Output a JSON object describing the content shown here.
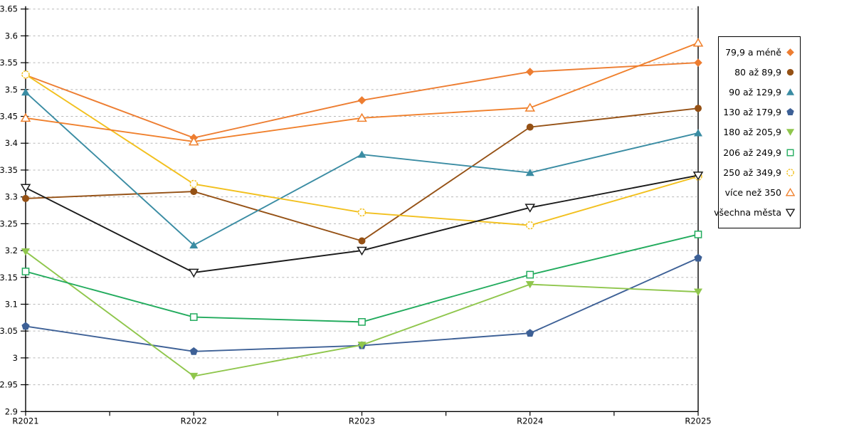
{
  "chart_data": {
    "type": "line",
    "title": "",
    "xlabel": "",
    "ylabel": "",
    "categories": [
      "R2021",
      "R2022",
      "R2023",
      "R2024",
      "R2025"
    ],
    "series": [
      {
        "name": "79,9 a méně",
        "marker": "diamond",
        "hollow": false,
        "color": "#ED7D31",
        "values": [
          3.527,
          3.41,
          3.48,
          3.533,
          3.55
        ]
      },
      {
        "name": "80 až 89,9",
        "marker": "circle",
        "hollow": false,
        "color": "#955115",
        "values": [
          3.297,
          3.31,
          3.218,
          3.43,
          3.465
        ]
      },
      {
        "name": "90 až 129,9",
        "marker": "triangle-up",
        "hollow": false,
        "color": "#3A8CA3",
        "values": [
          3.495,
          3.21,
          3.379,
          3.345,
          3.419
        ]
      },
      {
        "name": "130 až 179,9",
        "marker": "pentagon",
        "hollow": false,
        "color": "#3D6096",
        "values": [
          3.059,
          3.012,
          3.023,
          3.046,
          3.186
        ]
      },
      {
        "name": "180 až 205,9",
        "marker": "triangle-down",
        "hollow": false,
        "color": "#8FC64C",
        "values": [
          3.198,
          2.966,
          3.024,
          3.137,
          3.123
        ]
      },
      {
        "name": "206 až 249,9",
        "marker": "square",
        "hollow": true,
        "color": "#22AB5D",
        "values": [
          3.161,
          3.076,
          3.067,
          3.155,
          3.23
        ]
      },
      {
        "name": "250 až 349,9",
        "marker": "circle",
        "hollow": true,
        "color": "#F2C01E",
        "values": [
          3.528,
          3.324,
          3.271,
          3.247,
          3.338
        ]
      },
      {
        "name": "více než 350",
        "marker": "triangle-up",
        "hollow": true,
        "color": "#F0802C",
        "values": [
          3.447,
          3.403,
          3.447,
          3.466,
          3.587
        ]
      },
      {
        "name": "všechna města",
        "marker": "triangle-down",
        "hollow": true,
        "color": "#1A1A1A",
        "values": [
          3.317,
          3.159,
          3.2,
          3.28,
          3.34
        ]
      }
    ],
    "ylim": [
      2.9,
      3.65
    ],
    "ytick_step": 0.05,
    "ytick_labels": [
      "3.65",
      "3.6",
      "3.55",
      "3.5",
      "3.45",
      "3.4",
      "3.35",
      "3.3",
      "3.25",
      "3.2",
      "3.15",
      "3.1",
      "3.05",
      "3",
      "2.95",
      "2.9"
    ],
    "grid": "horizontal-dashed",
    "grid_color": "#b8b8b8",
    "axis_color": "#000000",
    "legend_position": "right"
  }
}
